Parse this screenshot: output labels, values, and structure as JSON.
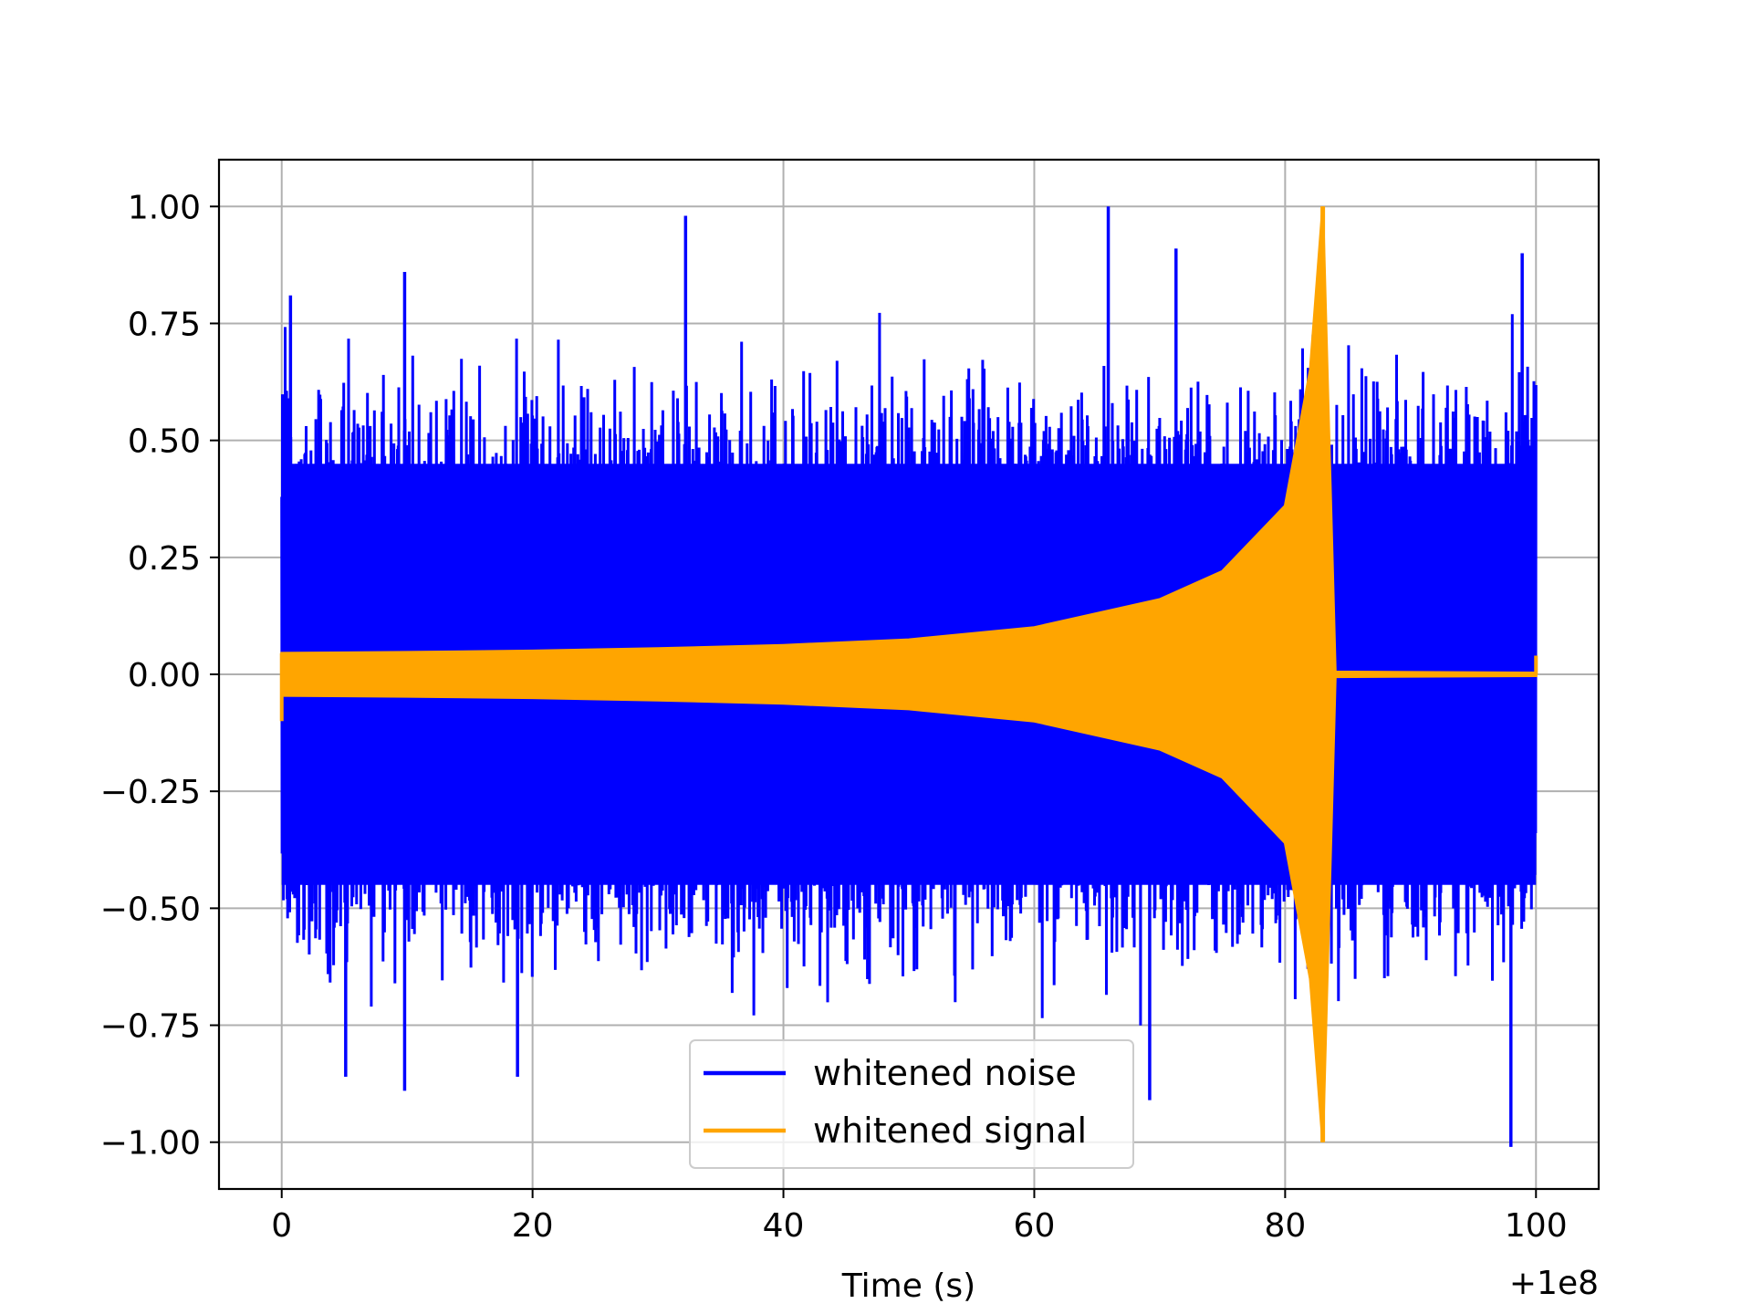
{
  "chart_data": {
    "type": "line",
    "title": "",
    "xlabel": "Time (s)",
    "ylabel": "",
    "x_offset_label": "+1e8",
    "xlim": [
      -5,
      105
    ],
    "ylim": [
      -1.1,
      1.1
    ],
    "xticks": [
      0,
      20,
      40,
      60,
      80,
      100
    ],
    "xtick_labels": [
      "0",
      "20",
      "40",
      "60",
      "80",
      "100"
    ],
    "yticks": [
      1.0,
      0.75,
      0.5,
      0.25,
      0.0,
      -0.25,
      -0.5,
      -0.75,
      -1.0
    ],
    "ytick_labels": [
      "1.00",
      "0.75",
      "0.50",
      "0.25",
      "0.00",
      "−0.25",
      "−0.50",
      "−0.75",
      "−1.00"
    ],
    "grid": true,
    "legend": {
      "placement": "lower center",
      "entries": [
        "whitened noise",
        "whitened signal"
      ]
    },
    "series": [
      {
        "name": "whitened noise",
        "color": "#0000ff",
        "x_range": [
          0,
          100
        ],
        "typical_envelope": [
          -0.6,
          0.6
        ],
        "peaks": [
          {
            "x": 0.7,
            "y": 0.81
          },
          {
            "x": 9.8,
            "y": 0.86
          },
          {
            "x": 32.2,
            "y": 0.98
          },
          {
            "x": 65.9,
            "y": 1.0
          },
          {
            "x": 71.3,
            "y": 0.91
          },
          {
            "x": 98.9,
            "y": 0.9
          }
        ],
        "troughs": [
          {
            "x": 5.1,
            "y": -0.86
          },
          {
            "x": 9.8,
            "y": -0.89
          },
          {
            "x": 18.8,
            "y": -0.86
          },
          {
            "x": 69.2,
            "y": -0.91
          },
          {
            "x": 98.0,
            "y": -1.01
          }
        ]
      },
      {
        "name": "whitened signal",
        "color": "#ffa500",
        "x_range": [
          0,
          100
        ],
        "points": [
          {
            "x": 0,
            "amplitude": 0.045
          },
          {
            "x": 10,
            "amplitude": 0.047
          },
          {
            "x": 20,
            "amplitude": 0.05
          },
          {
            "x": 30,
            "amplitude": 0.055
          },
          {
            "x": 40,
            "amplitude": 0.062
          },
          {
            "x": 50,
            "amplitude": 0.074
          },
          {
            "x": 60,
            "amplitude": 0.1
          },
          {
            "x": 70,
            "amplitude": 0.16
          },
          {
            "x": 75,
            "amplitude": 0.22
          },
          {
            "x": 80,
            "amplitude": 0.36
          },
          {
            "x": 82,
            "amplitude": 0.65
          },
          {
            "x": 83,
            "amplitude": 1.0
          },
          {
            "x": 84,
            "amplitude": 0.005
          },
          {
            "x": 100,
            "amplitude": 0.003
          }
        ]
      }
    ]
  }
}
